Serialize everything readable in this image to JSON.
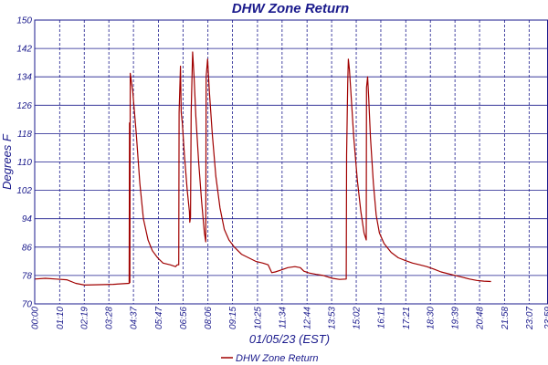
{
  "chart_data": {
    "type": "line",
    "title": "DHW Zone Return",
    "xlabel": "01/05/23 (EST)",
    "ylabel": "Degrees F",
    "ylim": [
      70,
      150
    ],
    "yticks": [
      70,
      78,
      86,
      94,
      102,
      110,
      118,
      126,
      134,
      142,
      150
    ],
    "xlim": [
      0,
      1440
    ],
    "xtick_labels": [
      "00:00",
      "01:10",
      "02:19",
      "03:28",
      "04:37",
      "05:47",
      "06:56",
      "08:06",
      "09:15",
      "10:25",
      "11:34",
      "12:44",
      "13:53",
      "15:02",
      "16:11",
      "17:21",
      "18:30",
      "19:39",
      "20:48",
      "21:58",
      "23:07",
      "23:59"
    ],
    "xtick_values": [
      0,
      70,
      139,
      208,
      277,
      347,
      416,
      486,
      555,
      625,
      694,
      764,
      833,
      902,
      971,
      1041,
      1110,
      1179,
      1248,
      1318,
      1387,
      1439
    ],
    "grid": true,
    "legend_position": "bottom-center",
    "line_color": "#a00000",
    "axis_color": "#1a1a8c",
    "series": [
      {
        "name": "DHW Zone Return",
        "points": [
          [
            0,
            77
          ],
          [
            30,
            77.2
          ],
          [
            60,
            77
          ],
          [
            90,
            76.8
          ],
          [
            115,
            75.8
          ],
          [
            140,
            75.3
          ],
          [
            180,
            75.4
          ],
          [
            220,
            75.5
          ],
          [
            265,
            75.8
          ],
          [
            266,
            121
          ],
          [
            267,
            76
          ],
          [
            268,
            135
          ],
          [
            275,
            130
          ],
          [
            285,
            118
          ],
          [
            295,
            104
          ],
          [
            305,
            94
          ],
          [
            318,
            88
          ],
          [
            330,
            85
          ],
          [
            345,
            83
          ],
          [
            360,
            81.5
          ],
          [
            380,
            81
          ],
          [
            395,
            80.5
          ],
          [
            400,
            81
          ],
          [
            404,
            81
          ],
          [
            405,
            124
          ],
          [
            409,
            137
          ],
          [
            411,
            124
          ],
          [
            414,
            121
          ],
          [
            420,
            112
          ],
          [
            428,
            102
          ],
          [
            434,
            96
          ],
          [
            435,
            93
          ],
          [
            437,
            94.5
          ],
          [
            439,
            124
          ],
          [
            443,
            141
          ],
          [
            447,
            134
          ],
          [
            452,
            123
          ],
          [
            460,
            110
          ],
          [
            468,
            99
          ],
          [
            476,
            90
          ],
          [
            480,
            87.5
          ],
          [
            481,
            134
          ],
          [
            485,
            139
          ],
          [
            490,
            130
          ],
          [
            498,
            118
          ],
          [
            508,
            106
          ],
          [
            520,
            97
          ],
          [
            532,
            91
          ],
          [
            545,
            88
          ],
          [
            560,
            86
          ],
          [
            580,
            84
          ],
          [
            600,
            83
          ],
          [
            620,
            82
          ],
          [
            640,
            81.5
          ],
          [
            655,
            81
          ],
          [
            665,
            78.8
          ],
          [
            675,
            79
          ],
          [
            690,
            79.5
          ],
          [
            710,
            80.2
          ],
          [
            730,
            80.5
          ],
          [
            745,
            80.2
          ],
          [
            755,
            79.2
          ],
          [
            770,
            78.7
          ],
          [
            790,
            78.3
          ],
          [
            810,
            78
          ],
          [
            835,
            77.2
          ],
          [
            855,
            76.9
          ],
          [
            874,
            77
          ],
          [
            875,
            112
          ],
          [
            878,
            132
          ],
          [
            880,
            139
          ],
          [
            883,
            136
          ],
          [
            888,
            128
          ],
          [
            895,
            117
          ],
          [
            905,
            105
          ],
          [
            915,
            96
          ],
          [
            924,
            90
          ],
          [
            930,
            88
          ],
          [
            931,
            131
          ],
          [
            934,
            134
          ],
          [
            937,
            128
          ],
          [
            942,
            117
          ],
          [
            950,
            104
          ],
          [
            958,
            95
          ],
          [
            967,
            90
          ],
          [
            980,
            87
          ],
          [
            1000,
            84.5
          ],
          [
            1020,
            83
          ],
          [
            1040,
            82.2
          ],
          [
            1060,
            81.5
          ],
          [
            1080,
            81
          ],
          [
            1100,
            80.5
          ],
          [
            1120,
            79.8
          ],
          [
            1140,
            79
          ],
          [
            1160,
            78.5
          ],
          [
            1180,
            78
          ],
          [
            1200,
            77.5
          ],
          [
            1220,
            77
          ],
          [
            1240,
            76.6
          ],
          [
            1260,
            76.4
          ],
          [
            1280,
            76.3
          ]
        ]
      }
    ]
  }
}
